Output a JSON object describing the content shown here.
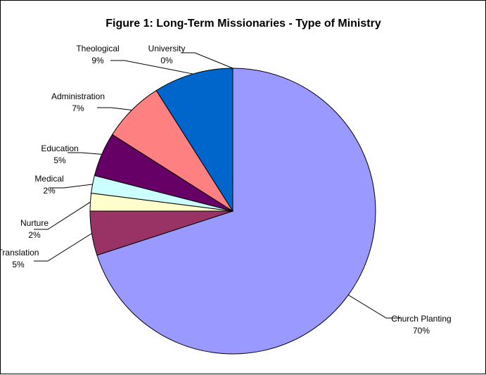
{
  "chart_data": {
    "type": "pie",
    "title": "Figure 1: Long-Term Missionaries - Type of Ministry",
    "slices": [
      {
        "name": "Church Planting",
        "value": 70,
        "label": "70%",
        "color": "#9999ff"
      },
      {
        "name": "Translation",
        "value": 5,
        "label": "5%",
        "color": "#993366"
      },
      {
        "name": "Nurture",
        "value": 2,
        "label": "2%",
        "color": "#ffffcc"
      },
      {
        "name": "Medical",
        "value": 2,
        "label": "2%",
        "color": "#ccffff"
      },
      {
        "name": "Education",
        "value": 5,
        "label": "5%",
        "color": "#660066"
      },
      {
        "name": "Administration",
        "value": 7,
        "label": "7%",
        "color": "#ff8080"
      },
      {
        "name": "Theological",
        "value": 9,
        "label": "9%",
        "color": "#0066cc"
      },
      {
        "name": "University",
        "value": 0,
        "label": "0%",
        "color": "#ccccff"
      }
    ],
    "legend": "none",
    "label_style": "category name and percent with leader lines"
  }
}
